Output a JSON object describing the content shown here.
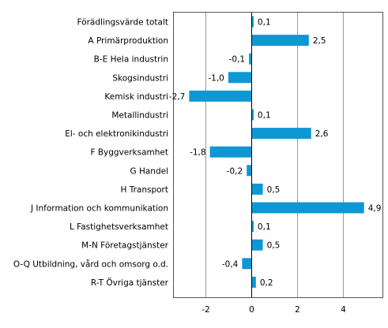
{
  "chart_data": {
    "type": "bar",
    "orientation": "horizontal",
    "categories": [
      "Förädlingsvärde totalt",
      "A Primärproduktion",
      "B-E Hela industrin",
      "Skogsindustri",
      "Kemisk industri",
      "Metallindustri",
      "El- och elektronikindustri",
      "F Byggverksamhet",
      "G Handel",
      "H Transport",
      "J Information och kommunikation",
      "L Fastighetsverksamhet",
      "M-N Företagstjänster",
      "O-Q Utbildning, vård och omsorg o.d.",
      "R-T Övriga tjänster"
    ],
    "values": [
      0.1,
      2.5,
      -0.1,
      -1.0,
      -2.7,
      0.1,
      2.6,
      -1.8,
      -0.2,
      0.5,
      4.9,
      0.1,
      0.5,
      -0.4,
      0.2
    ],
    "value_labels": [
      "0,1",
      "2,5",
      "-0,1",
      "-1,0",
      "-2,7",
      "0,1",
      "2,6",
      "-1,8",
      "-0,2",
      "0,5",
      "4,9",
      "0,1",
      "0,5",
      "-0,4",
      "0,2"
    ],
    "xlim": [
      -3.4,
      5.7
    ],
    "xticks": [
      -2,
      0,
      2,
      4
    ],
    "xtick_labels": [
      "-2",
      "0",
      "2",
      "4"
    ],
    "grid": "vertical",
    "bar_color": "#0f97d4",
    "title": "",
    "xlabel": "",
    "ylabel": ""
  }
}
